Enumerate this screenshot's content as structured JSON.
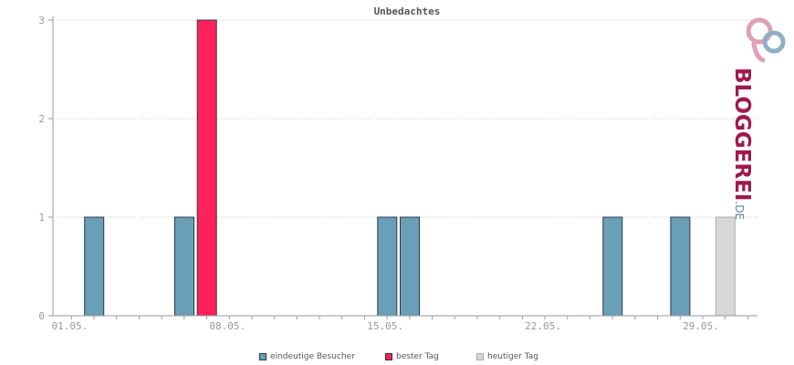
{
  "chart_data": {
    "type": "bar",
    "title": "Unbedachtes",
    "x_tick_labels": [
      "01.05.",
      "08.05.",
      "15.05.",
      "22.05.",
      "29.05."
    ],
    "y_tick_labels": [
      "0",
      "1",
      "2",
      "3"
    ],
    "ylim": [
      0,
      3
    ],
    "days": 31,
    "bars": [
      {
        "day": 2,
        "value": 1,
        "series": "eindeutige Besucher"
      },
      {
        "day": 6,
        "value": 1,
        "series": "eindeutige Besucher"
      },
      {
        "day": 7,
        "value": 3,
        "series": "bester Tag"
      },
      {
        "day": 15,
        "value": 1,
        "series": "eindeutige Besucher"
      },
      {
        "day": 16,
        "value": 1,
        "series": "eindeutige Besucher"
      },
      {
        "day": 25,
        "value": 1,
        "series": "eindeutige Besucher"
      },
      {
        "day": 28,
        "value": 1,
        "series": "eindeutige Besucher"
      },
      {
        "day": 30,
        "value": 1,
        "series": "heutiger Tag"
      }
    ],
    "legend": [
      {
        "name": "eindeutige Besucher",
        "color": "#6a9fb8"
      },
      {
        "name": "bester Tag",
        "color": "#ff215a"
      },
      {
        "name": "heutiger Tag",
        "color": "#d8d8d8"
      }
    ],
    "grid": true
  },
  "logo": {
    "main": "BLOGGEREI",
    "tld": ".DE"
  }
}
